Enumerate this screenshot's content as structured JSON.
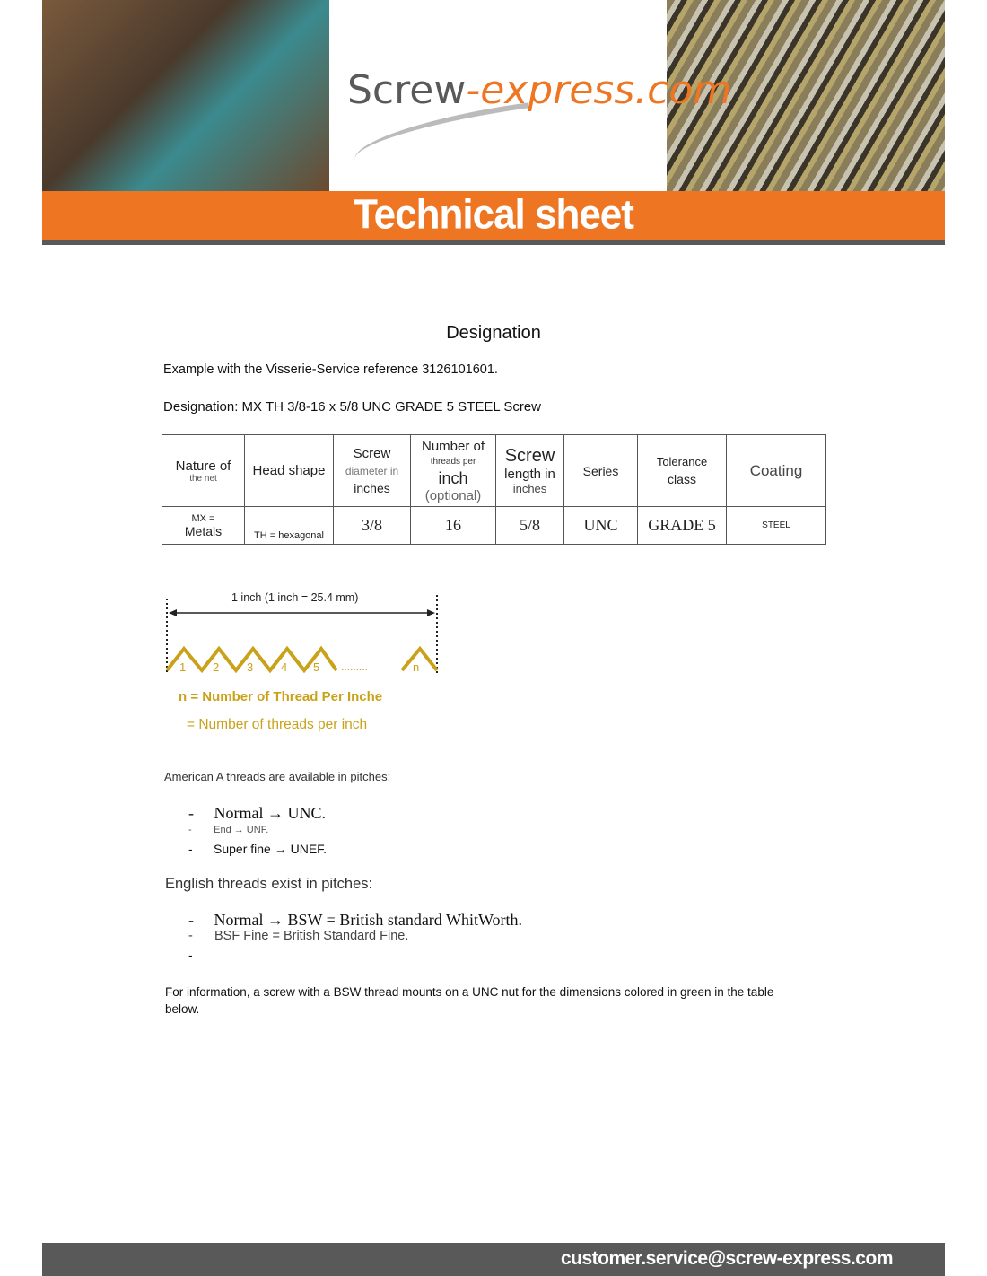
{
  "header": {
    "logo_part1": "Screw",
    "logo_part2": "-express.com",
    "banner_title": "Technical sheet"
  },
  "section_title": "Designation",
  "example_text": "Example with the Visserie-Service reference 3126101601.",
  "designation_text": "Designation: MX TH 3/8-16 x 5/8 UNC GRADE 5 STEEL Screw",
  "table": {
    "headers": [
      {
        "main": "Nature of",
        "sub": "the net"
      },
      {
        "main": "Head shape"
      },
      {
        "main": "Screw",
        "sub": "diameter in",
        "extra": "inches"
      },
      {
        "main": "Number of",
        "sub": "threads per",
        "extra": "inch",
        "extra2": "(optional)"
      },
      {
        "main": "Screw",
        "sub": "length in",
        "extra": "inches"
      },
      {
        "main": "Series"
      },
      {
        "main": "Tolerance",
        "sub": "class"
      },
      {
        "main": "Coating"
      }
    ],
    "row": {
      "nature_top": "MX =",
      "nature_bottom": "Metals",
      "head": "TH = hexagonal",
      "diameter": "3/8",
      "threads": "16",
      "length": "5/8",
      "series": "UNC",
      "tolerance": "GRADE 5",
      "coating": "STEEL"
    }
  },
  "diagram": {
    "measure": "1 inch (1 inch = 25.4 mm)",
    "numbers": [
      "1",
      "2",
      "3",
      "4",
      "5"
    ],
    "dots": ".........",
    "n": "n",
    "caption1": "n = Number of Thread Per Inche",
    "caption2": "= Number of threads per inch",
    "color": "#c9a21a"
  },
  "american": {
    "intro": "American A threads are available in pitches:",
    "items": [
      "Normal → UNC.",
      "End → UNF.",
      "Super fine → UNEF."
    ]
  },
  "english": {
    "intro": "English threads exist in pitches:",
    "items": [
      "Normal → BSW  = British standard WhitWorth.",
      "BSF Fine = British Standard Fine.",
      ""
    ]
  },
  "info": "For information, a screw with a BSW thread mounts on a UNC nut for the dimensions colored in green in the table below.",
  "footer": {
    "email": "customer.service@screw-express.com"
  },
  "colors": {
    "orange": "#ee7623",
    "grey": "#595959"
  }
}
